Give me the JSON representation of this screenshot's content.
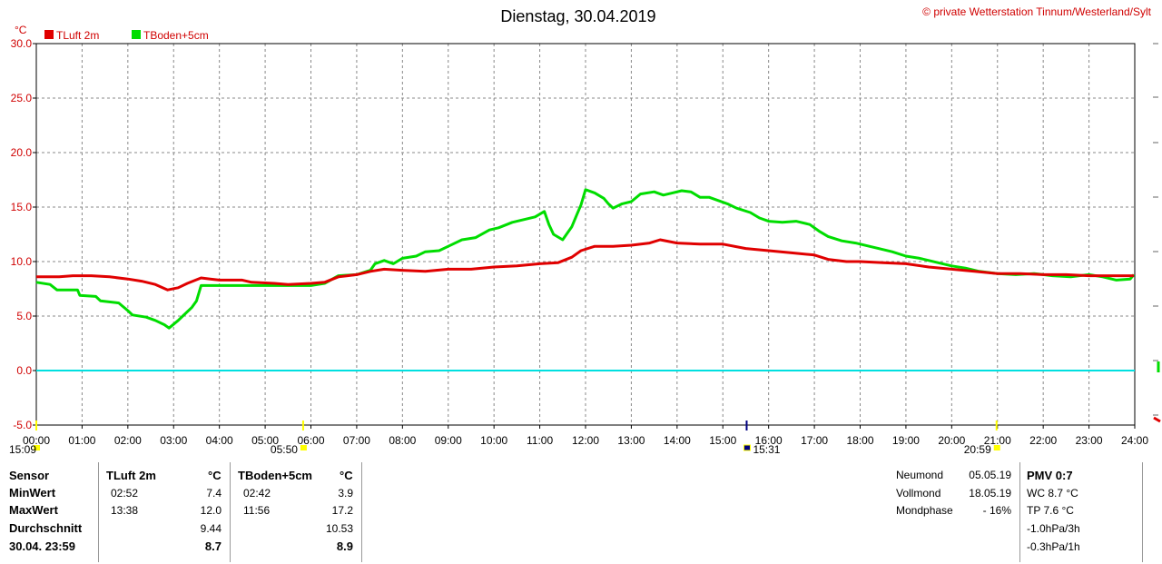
{
  "title": "Dienstag, 30.04.2019",
  "copyright": "© private Wetterstation Tinnum/Westerland/Sylt",
  "chart_data": {
    "type": "line",
    "ylabel": "°C",
    "ylim": [
      -5,
      30
    ],
    "yticks": [
      "30.0",
      "25.0",
      "20.0",
      "15.0",
      "10.0",
      "5.0",
      "0.0",
      "-5.0"
    ],
    "xticks": [
      "00:00",
      "01:00",
      "02:00",
      "03:00",
      "04:00",
      "05:00",
      "06:00",
      "07:00",
      "08:00",
      "09:00",
      "10:00",
      "11:00",
      "12:00",
      "13:00",
      "14:00",
      "15:00",
      "16:00",
      "17:00",
      "18:00",
      "19:00",
      "20:00",
      "21:00",
      "22:00",
      "23:00",
      "24:00"
    ],
    "grid": true,
    "legend_position": "top-left",
    "series": [
      {
        "name": "TLuft 2m",
        "color": "#e00000",
        "points": [
          [
            0,
            8.6
          ],
          [
            0.5,
            8.6
          ],
          [
            0.8,
            8.7
          ],
          [
            1.2,
            8.7
          ],
          [
            1.6,
            8.6
          ],
          [
            2.0,
            8.4
          ],
          [
            2.3,
            8.2
          ],
          [
            2.6,
            7.9
          ],
          [
            2.87,
            7.4
          ],
          [
            3.1,
            7.6
          ],
          [
            3.3,
            8.0
          ],
          [
            3.6,
            8.5
          ],
          [
            3.8,
            8.4
          ],
          [
            4.0,
            8.3
          ],
          [
            4.5,
            8.3
          ],
          [
            4.7,
            8.1
          ],
          [
            5.2,
            8.0
          ],
          [
            5.5,
            7.9
          ],
          [
            6.0,
            8.0
          ],
          [
            6.3,
            8.1
          ],
          [
            6.6,
            8.6
          ],
          [
            7.0,
            8.8
          ],
          [
            7.3,
            9.1
          ],
          [
            7.6,
            9.3
          ],
          [
            8.0,
            9.2
          ],
          [
            8.5,
            9.1
          ],
          [
            9.0,
            9.3
          ],
          [
            9.5,
            9.3
          ],
          [
            10.0,
            9.5
          ],
          [
            10.5,
            9.6
          ],
          [
            11.0,
            9.8
          ],
          [
            11.4,
            9.9
          ],
          [
            11.7,
            10.4
          ],
          [
            11.9,
            11.0
          ],
          [
            12.2,
            11.4
          ],
          [
            12.6,
            11.4
          ],
          [
            13.0,
            11.5
          ],
          [
            13.4,
            11.7
          ],
          [
            13.63,
            12.0
          ],
          [
            14.0,
            11.7
          ],
          [
            14.5,
            11.6
          ],
          [
            15.0,
            11.6
          ],
          [
            15.5,
            11.2
          ],
          [
            16.0,
            11.0
          ],
          [
            16.5,
            10.8
          ],
          [
            17.0,
            10.6
          ],
          [
            17.3,
            10.2
          ],
          [
            17.7,
            10.0
          ],
          [
            18.0,
            10.0
          ],
          [
            18.5,
            9.9
          ],
          [
            19.0,
            9.8
          ],
          [
            19.5,
            9.5
          ],
          [
            20.0,
            9.3
          ],
          [
            20.5,
            9.1
          ],
          [
            21.0,
            8.9
          ],
          [
            21.5,
            8.9
          ],
          [
            22.0,
            8.8
          ],
          [
            22.5,
            8.8
          ],
          [
            23.0,
            8.7
          ],
          [
            23.5,
            8.7
          ],
          [
            23.98,
            8.7
          ]
        ]
      },
      {
        "name": "TBoden+5cm",
        "color": "#00dd00",
        "points": [
          [
            0,
            8.1
          ],
          [
            0.3,
            7.9
          ],
          [
            0.45,
            7.4
          ],
          [
            0.9,
            7.4
          ],
          [
            0.95,
            6.9
          ],
          [
            1.3,
            6.8
          ],
          [
            1.4,
            6.4
          ],
          [
            1.8,
            6.2
          ],
          [
            2.0,
            5.5
          ],
          [
            2.1,
            5.1
          ],
          [
            2.4,
            4.9
          ],
          [
            2.6,
            4.6
          ],
          [
            2.8,
            4.2
          ],
          [
            2.9,
            3.9
          ],
          [
            3.1,
            4.6
          ],
          [
            3.2,
            5.0
          ],
          [
            3.4,
            5.8
          ],
          [
            3.5,
            6.4
          ],
          [
            3.6,
            7.8
          ],
          [
            4.5,
            7.8
          ],
          [
            5.0,
            7.8
          ],
          [
            5.5,
            7.8
          ],
          [
            6.0,
            7.8
          ],
          [
            6.3,
            8.0
          ],
          [
            6.6,
            8.7
          ],
          [
            7.0,
            8.8
          ],
          [
            7.3,
            9.2
          ],
          [
            7.4,
            9.8
          ],
          [
            7.6,
            10.1
          ],
          [
            7.8,
            9.8
          ],
          [
            8.0,
            10.3
          ],
          [
            8.3,
            10.5
          ],
          [
            8.5,
            10.9
          ],
          [
            8.8,
            11.0
          ],
          [
            9.0,
            11.4
          ],
          [
            9.3,
            12.0
          ],
          [
            9.6,
            12.2
          ],
          [
            9.9,
            12.9
          ],
          [
            10.1,
            13.1
          ],
          [
            10.4,
            13.6
          ],
          [
            10.7,
            13.9
          ],
          [
            10.9,
            14.1
          ],
          [
            11.1,
            14.6
          ],
          [
            11.2,
            13.4
          ],
          [
            11.3,
            12.5
          ],
          [
            11.5,
            12.0
          ],
          [
            11.7,
            13.2
          ],
          [
            11.8,
            14.2
          ],
          [
            11.9,
            15.2
          ],
          [
            12.0,
            16.6
          ],
          [
            12.2,
            16.3
          ],
          [
            12.4,
            15.8
          ],
          [
            12.5,
            15.3
          ],
          [
            12.6,
            14.9
          ],
          [
            12.8,
            15.3
          ],
          [
            13.0,
            15.5
          ],
          [
            13.2,
            16.2
          ],
          [
            13.5,
            16.4
          ],
          [
            13.7,
            16.1
          ],
          [
            13.9,
            16.3
          ],
          [
            14.1,
            16.5
          ],
          [
            14.3,
            16.4
          ],
          [
            14.5,
            15.9
          ],
          [
            14.7,
            15.9
          ],
          [
            14.9,
            15.6
          ],
          [
            15.1,
            15.3
          ],
          [
            15.3,
            14.9
          ],
          [
            15.6,
            14.5
          ],
          [
            15.8,
            14.0
          ],
          [
            16.0,
            13.7
          ],
          [
            16.3,
            13.6
          ],
          [
            16.6,
            13.7
          ],
          [
            16.9,
            13.4
          ],
          [
            17.1,
            12.8
          ],
          [
            17.3,
            12.3
          ],
          [
            17.6,
            11.9
          ],
          [
            17.9,
            11.7
          ],
          [
            18.2,
            11.4
          ],
          [
            18.4,
            11.2
          ],
          [
            18.7,
            10.9
          ],
          [
            19.0,
            10.5
          ],
          [
            19.3,
            10.3
          ],
          [
            19.5,
            10.1
          ],
          [
            19.8,
            9.8
          ],
          [
            20.0,
            9.6
          ],
          [
            20.3,
            9.4
          ],
          [
            20.6,
            9.1
          ],
          [
            21.0,
            8.9
          ],
          [
            21.4,
            8.8
          ],
          [
            21.8,
            8.9
          ],
          [
            22.2,
            8.7
          ],
          [
            22.6,
            8.6
          ],
          [
            23.0,
            8.8
          ],
          [
            23.3,
            8.6
          ],
          [
            23.6,
            8.3
          ],
          [
            23.9,
            8.4
          ],
          [
            23.98,
            8.8
          ]
        ]
      },
      {
        "name": "",
        "color": "#00e0e0",
        "points": [
          [
            0,
            0.0
          ],
          [
            24,
            0.0
          ]
        ]
      }
    ],
    "time_markers": [
      {
        "label": "15:09",
        "time": 0.0,
        "color": "#ffff00"
      },
      {
        "label": "05:50",
        "time": 5.83,
        "color": "#ffff00"
      },
      {
        "label": "15:31",
        "time": 15.52,
        "color": "#000080"
      },
      {
        "label": "20:59",
        "time": 20.98,
        "color": "#ffff00"
      }
    ]
  },
  "table": {
    "sensor_label": "Sensor",
    "min_label": "MinWert",
    "max_label": "MaxWert",
    "avg_label": "Durchschnitt",
    "date_label": "30.04. 23:59",
    "col1_header": "TLuft 2m",
    "col1_unit": "°C",
    "col1_min_time": "02:52",
    "col1_min": "7.4",
    "col1_max_time": "13:38",
    "col1_max": "12.0",
    "col1_avg": "9.44",
    "col1_current": "8.7",
    "col2_header": "TBoden+5cm",
    "col2_unit": "°C",
    "col2_min_time": "02:42",
    "col2_min": "3.9",
    "col2_max_time": "11:56",
    "col2_max": "17.2",
    "col2_avg": "10.53",
    "col2_current": "8.9"
  },
  "moon": {
    "neumond_label": "Neumond",
    "neumond_date": "05.05.19",
    "vollmond_label": "Vollmond",
    "vollmond_date": "18.05.19",
    "phase_label": "Mondphase",
    "phase_value": "- 16%"
  },
  "pmv": {
    "title": "PMV 0:7",
    "wc": "WC 8.7 °C",
    "tp": "TP 7.6 °C",
    "p3h": "-1.0hPa/3h",
    "p1h": "-0.3hPa/1h"
  }
}
